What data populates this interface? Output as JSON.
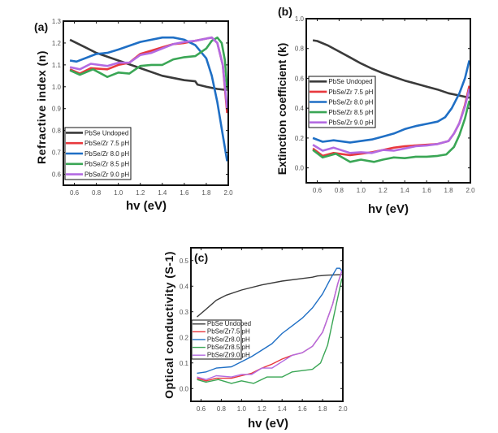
{
  "chart_data": [
    {
      "type": "line",
      "panel_label": "(a)",
      "xlabel": "hv (eV)",
      "ylabel": "Refractive index (n)",
      "xlim": [
        0.5,
        2.0
      ],
      "ylim": [
        0.55,
        1.3
      ],
      "xticks": [
        "0.6",
        "0.8",
        "1.0",
        "1.2",
        "1.4",
        "1.6",
        "1.8",
        "2.0"
      ],
      "yticks": [
        "0.6",
        "0.7",
        "0.8",
        "0.9",
        "1.0",
        "1.1",
        "1.2",
        "1.3"
      ],
      "legend_position": "bottom-left",
      "series": [
        {
          "name": "PbSe Undoped",
          "color": "#3a3a3a",
          "points": [
            [
              0.56,
              1.215
            ],
            [
              0.7,
              1.18
            ],
            [
              0.8,
              1.155
            ],
            [
              1.0,
              1.12
            ],
            [
              1.2,
              1.085
            ],
            [
              1.4,
              1.05
            ],
            [
              1.6,
              1.03
            ],
            [
              1.7,
              1.025
            ],
            [
              1.72,
              1.01
            ],
            [
              1.8,
              1.0
            ],
            [
              1.9,
              0.99
            ],
            [
              1.99,
              0.985
            ]
          ]
        },
        {
          "name": "PbSe/Zr 7.5 pH",
          "color": "#e8383d",
          "points": [
            [
              0.56,
              1.08
            ],
            [
              0.65,
              1.06
            ],
            [
              0.75,
              1.085
            ],
            [
              0.9,
              1.08
            ],
            [
              1.0,
              1.1
            ],
            [
              1.1,
              1.11
            ],
            [
              1.2,
              1.15
            ],
            [
              1.3,
              1.165
            ],
            [
              1.4,
              1.18
            ],
            [
              1.5,
              1.195
            ],
            [
              1.6,
              1.2
            ],
            [
              1.7,
              1.21
            ],
            [
              1.8,
              1.22
            ],
            [
              1.85,
              1.225
            ],
            [
              1.9,
              1.2
            ],
            [
              1.95,
              1.1
            ],
            [
              1.99,
              0.88
            ]
          ]
        },
        {
          "name": "PbSe/Zr 8.0 pH",
          "color": "#1f6fc5",
          "points": [
            [
              0.56,
              1.12
            ],
            [
              0.62,
              1.115
            ],
            [
              0.8,
              1.15
            ],
            [
              0.9,
              1.155
            ],
            [
              1.0,
              1.17
            ],
            [
              1.2,
              1.205
            ],
            [
              1.4,
              1.225
            ],
            [
              1.5,
              1.225
            ],
            [
              1.6,
              1.215
            ],
            [
              1.7,
              1.19
            ],
            [
              1.8,
              1.13
            ],
            [
              1.85,
              1.05
            ],
            [
              1.9,
              0.93
            ],
            [
              1.95,
              0.78
            ],
            [
              1.99,
              0.66
            ]
          ]
        },
        {
          "name": "PbSe/Zr 8.5 pH",
          "color": "#3aa655",
          "points": [
            [
              0.56,
              1.075
            ],
            [
              0.65,
              1.055
            ],
            [
              0.77,
              1.08
            ],
            [
              0.9,
              1.045
            ],
            [
              1.0,
              1.065
            ],
            [
              1.1,
              1.06
            ],
            [
              1.2,
              1.095
            ],
            [
              1.3,
              1.1
            ],
            [
              1.4,
              1.1
            ],
            [
              1.5,
              1.125
            ],
            [
              1.6,
              1.135
            ],
            [
              1.7,
              1.14
            ],
            [
              1.8,
              1.175
            ],
            [
              1.85,
              1.21
            ],
            [
              1.9,
              1.225
            ],
            [
              1.94,
              1.2
            ],
            [
              1.97,
              1.12
            ],
            [
              1.99,
              0.99
            ]
          ]
        },
        {
          "name": "PbSe/Zr 9.0 pH",
          "color": "#b36ae2",
          "points": [
            [
              0.56,
              1.09
            ],
            [
              0.65,
              1.08
            ],
            [
              0.75,
              1.105
            ],
            [
              0.9,
              1.095
            ],
            [
              1.0,
              1.11
            ],
            [
              1.1,
              1.11
            ],
            [
              1.2,
              1.145
            ],
            [
              1.3,
              1.155
            ],
            [
              1.4,
              1.175
            ],
            [
              1.5,
              1.195
            ],
            [
              1.6,
              1.205
            ],
            [
              1.7,
              1.21
            ],
            [
              1.8,
              1.22
            ],
            [
              1.85,
              1.225
            ],
            [
              1.9,
              1.2
            ],
            [
              1.95,
              1.1
            ],
            [
              1.99,
              0.9
            ]
          ]
        }
      ]
    },
    {
      "type": "line",
      "panel_label": "(b)",
      "xlabel": "hv (eV)",
      "ylabel": "Extinction coefficient (k)",
      "xlim": [
        0.5,
        2.0
      ],
      "ylim": [
        -0.1,
        1.0
      ],
      "xticks": [
        "0.6",
        "0.8",
        "1.0",
        "1.2",
        "1.4",
        "1.6",
        "1.8",
        "2.0"
      ],
      "yticks": [
        "0.0",
        "0.2",
        "0.4",
        "0.6",
        "0.8",
        "1.0"
      ],
      "legend_position": "center-left",
      "series": [
        {
          "name": "PbSe Undoped",
          "color": "#3a3a3a",
          "points": [
            [
              0.56,
              0.855
            ],
            [
              0.6,
              0.85
            ],
            [
              0.7,
              0.82
            ],
            [
              0.8,
              0.78
            ],
            [
              0.9,
              0.74
            ],
            [
              1.0,
              0.7
            ],
            [
              1.1,
              0.665
            ],
            [
              1.2,
              0.635
            ],
            [
              1.3,
              0.61
            ],
            [
              1.4,
              0.585
            ],
            [
              1.5,
              0.565
            ],
            [
              1.6,
              0.545
            ],
            [
              1.7,
              0.525
            ],
            [
              1.8,
              0.5
            ],
            [
              1.9,
              0.485
            ],
            [
              1.99,
              0.47
            ]
          ]
        },
        {
          "name": "PbSe/Zr 7.5 pH",
          "color": "#e8383d",
          "points": [
            [
              0.56,
              0.13
            ],
            [
              0.65,
              0.08
            ],
            [
              0.75,
              0.1
            ],
            [
              0.9,
              0.085
            ],
            [
              1.0,
              0.095
            ],
            [
              1.1,
              0.105
            ],
            [
              1.2,
              0.12
            ],
            [
              1.3,
              0.135
            ],
            [
              1.4,
              0.145
            ],
            [
              1.5,
              0.15
            ],
            [
              1.6,
              0.155
            ],
            [
              1.7,
              0.16
            ],
            [
              1.8,
              0.18
            ],
            [
              1.85,
              0.23
            ],
            [
              1.9,
              0.3
            ],
            [
              1.95,
              0.42
            ],
            [
              1.99,
              0.55
            ]
          ]
        },
        {
          "name": "PbSe/Zr 8.0 pH",
          "color": "#1f6fc5",
          "points": [
            [
              0.56,
              0.2
            ],
            [
              0.65,
              0.175
            ],
            [
              0.75,
              0.185
            ],
            [
              0.9,
              0.17
            ],
            [
              1.0,
              0.18
            ],
            [
              1.1,
              0.19
            ],
            [
              1.2,
              0.21
            ],
            [
              1.3,
              0.23
            ],
            [
              1.4,
              0.26
            ],
            [
              1.5,
              0.28
            ],
            [
              1.6,
              0.295
            ],
            [
              1.7,
              0.31
            ],
            [
              1.77,
              0.34
            ],
            [
              1.83,
              0.4
            ],
            [
              1.9,
              0.5
            ],
            [
              1.95,
              0.6
            ],
            [
              1.99,
              0.72
            ]
          ]
        },
        {
          "name": "PbSe/Zr 8.5 pH",
          "color": "#3aa655",
          "points": [
            [
              0.56,
              0.12
            ],
            [
              0.65,
              0.07
            ],
            [
              0.77,
              0.095
            ],
            [
              0.9,
              0.04
            ],
            [
              1.0,
              0.055
            ],
            [
              1.12,
              0.04
            ],
            [
              1.2,
              0.055
            ],
            [
              1.3,
              0.07
            ],
            [
              1.4,
              0.065
            ],
            [
              1.5,
              0.075
            ],
            [
              1.6,
              0.075
            ],
            [
              1.7,
              0.08
            ],
            [
              1.78,
              0.09
            ],
            [
              1.85,
              0.14
            ],
            [
              1.9,
              0.22
            ],
            [
              1.95,
              0.33
            ],
            [
              1.99,
              0.45
            ]
          ]
        },
        {
          "name": "PbSe/Zr 9.0 pH",
          "color": "#b36ae2",
          "points": [
            [
              0.56,
              0.155
            ],
            [
              0.65,
              0.115
            ],
            [
              0.75,
              0.135
            ],
            [
              0.9,
              0.1
            ],
            [
              1.0,
              0.105
            ],
            [
              1.1,
              0.1
            ],
            [
              1.2,
              0.12
            ],
            [
              1.3,
              0.115
            ],
            [
              1.4,
              0.13
            ],
            [
              1.5,
              0.145
            ],
            [
              1.6,
              0.15
            ],
            [
              1.7,
              0.16
            ],
            [
              1.8,
              0.18
            ],
            [
              1.85,
              0.23
            ],
            [
              1.9,
              0.3
            ],
            [
              1.95,
              0.41
            ],
            [
              1.99,
              0.53
            ]
          ]
        }
      ]
    },
    {
      "type": "line",
      "panel_label": "(c)",
      "xlabel": "hv (eV)",
      "ylabel": "Optical conductivity (S-1)",
      "xlim": [
        0.5,
        2.0
      ],
      "ylim": [
        -0.05,
        0.55
      ],
      "xticks": [
        "0.6",
        "0.8",
        "1.0",
        "1.2",
        "1.4",
        "1.6",
        "1.8",
        "2.0"
      ],
      "yticks": [
        "0.0",
        "0.1",
        "0.2",
        "0.3",
        "0.4",
        "0.5"
      ],
      "legend_position": "center-left",
      "series": [
        {
          "name": "PbSe Undoped",
          "color": "#3a3a3a",
          "points": [
            [
              0.56,
              0.28
            ],
            [
              0.65,
              0.31
            ],
            [
              0.75,
              0.345
            ],
            [
              0.85,
              0.365
            ],
            [
              1.0,
              0.385
            ],
            [
              1.2,
              0.405
            ],
            [
              1.4,
              0.42
            ],
            [
              1.6,
              0.43
            ],
            [
              1.7,
              0.435
            ],
            [
              1.75,
              0.44
            ],
            [
              1.85,
              0.443
            ],
            [
              1.99,
              0.445
            ]
          ]
        },
        {
          "name": "PbSe/Zr7.5 pH",
          "color": "#e8383d",
          "points": [
            [
              0.56,
              0.04
            ],
            [
              0.65,
              0.03
            ],
            [
              0.75,
              0.04
            ],
            [
              0.9,
              0.04
            ],
            [
              1.0,
              0.05
            ],
            [
              1.1,
              0.06
            ],
            [
              1.2,
              0.08
            ],
            [
              1.3,
              0.095
            ],
            [
              1.4,
              0.115
            ],
            [
              1.5,
              0.13
            ],
            [
              1.6,
              0.14
            ],
            [
              1.7,
              0.165
            ],
            [
              1.8,
              0.22
            ],
            [
              1.9,
              0.33
            ],
            [
              1.95,
              0.41
            ],
            [
              1.99,
              0.46
            ]
          ]
        },
        {
          "name": "PbSe/Zr8.0 pH",
          "color": "#1f6fc5",
          "points": [
            [
              0.56,
              0.06
            ],
            [
              0.65,
              0.065
            ],
            [
              0.75,
              0.08
            ],
            [
              0.9,
              0.085
            ],
            [
              1.0,
              0.105
            ],
            [
              1.1,
              0.125
            ],
            [
              1.2,
              0.15
            ],
            [
              1.3,
              0.175
            ],
            [
              1.4,
              0.215
            ],
            [
              1.5,
              0.245
            ],
            [
              1.6,
              0.275
            ],
            [
              1.7,
              0.315
            ],
            [
              1.8,
              0.37
            ],
            [
              1.88,
              0.43
            ],
            [
              1.94,
              0.47
            ],
            [
              1.97,
              0.47
            ],
            [
              1.99,
              0.46
            ]
          ]
        },
        {
          "name": "PbSe/Zr8.5 pH",
          "color": "#3aa655",
          "points": [
            [
              0.56,
              0.035
            ],
            [
              0.65,
              0.025
            ],
            [
              0.77,
              0.035
            ],
            [
              0.9,
              0.02
            ],
            [
              1.0,
              0.03
            ],
            [
              1.12,
              0.02
            ],
            [
              1.25,
              0.045
            ],
            [
              1.4,
              0.045
            ],
            [
              1.5,
              0.065
            ],
            [
              1.6,
              0.07
            ],
            [
              1.7,
              0.075
            ],
            [
              1.78,
              0.1
            ],
            [
              1.85,
              0.17
            ],
            [
              1.92,
              0.3
            ],
            [
              1.99,
              0.43
            ]
          ]
        },
        {
          "name": "PbSe/Zr9.0 pH",
          "color": "#b36ae2",
          "points": [
            [
              0.56,
              0.045
            ],
            [
              0.65,
              0.035
            ],
            [
              0.75,
              0.05
            ],
            [
              0.9,
              0.045
            ],
            [
              1.0,
              0.055
            ],
            [
              1.1,
              0.055
            ],
            [
              1.2,
              0.08
            ],
            [
              1.3,
              0.08
            ],
            [
              1.4,
              0.105
            ],
            [
              1.5,
              0.13
            ],
            [
              1.6,
              0.14
            ],
            [
              1.7,
              0.165
            ],
            [
              1.8,
              0.22
            ],
            [
              1.9,
              0.33
            ],
            [
              1.95,
              0.41
            ],
            [
              1.99,
              0.46
            ]
          ]
        }
      ]
    }
  ]
}
